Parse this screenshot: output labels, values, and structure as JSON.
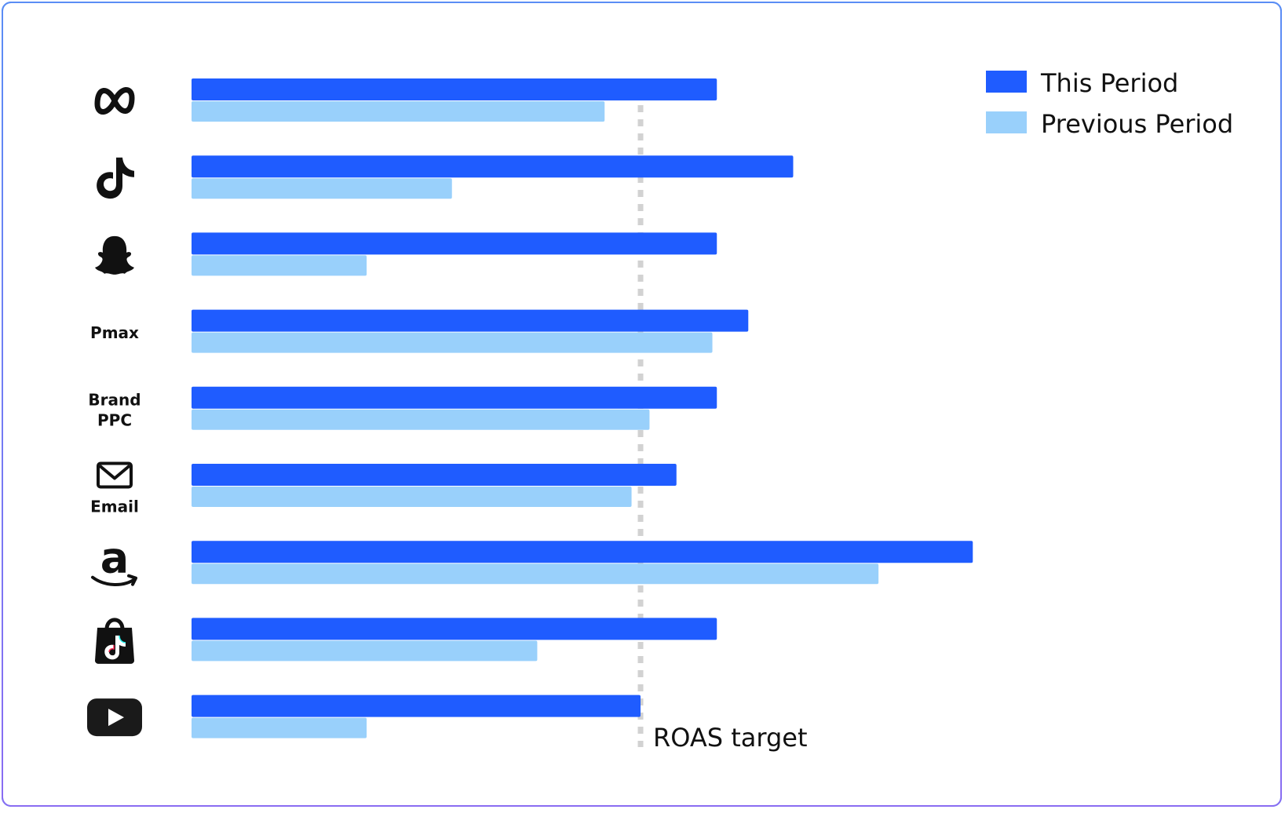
{
  "chart_data": {
    "type": "bar",
    "orientation": "horizontal",
    "categories": [
      {
        "text": "",
        "icon": "meta-icon"
      },
      {
        "text": "",
        "icon": "tiktok-icon"
      },
      {
        "text": "",
        "icon": "snapchat-icon"
      },
      {
        "text": "Pmax",
        "icon": ""
      },
      {
        "text": "Brand\nPPC",
        "icon": ""
      },
      {
        "text": "Email",
        "icon": "mail-icon"
      },
      {
        "text": "",
        "icon": "amazon-icon"
      },
      {
        "text": "",
        "icon": "tiktok-shop-icon"
      },
      {
        "text": "",
        "icon": "youtube-icon"
      }
    ],
    "series": [
      {
        "name": "This Period",
        "color": "#1f5cff",
        "values": [
          117,
          134,
          117,
          124,
          117,
          108,
          174,
          117,
          100
        ]
      },
      {
        "name": "Previous Period",
        "color": "#99d0fb",
        "values": [
          92,
          58,
          39,
          116,
          102,
          98,
          153,
          77,
          39
        ]
      }
    ],
    "xlim": [
      0,
      200
    ],
    "reference_line": {
      "label": "ROAS target",
      "value": 100
    },
    "legend": "top-right",
    "grid": false,
    "axes_visible": false
  }
}
